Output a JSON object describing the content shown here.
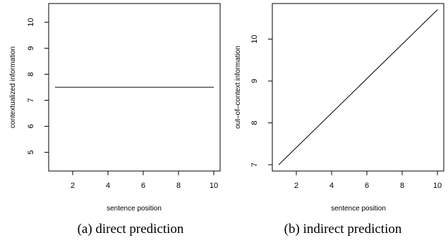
{
  "chart_data": [
    {
      "type": "line",
      "x": [
        1,
        10
      ],
      "y": [
        7.5,
        7.5
      ],
      "xlabel": "sentence position",
      "ylabel": "contextualized information",
      "xlim": [
        0.64,
        10.36
      ],
      "ylim": [
        4.28,
        10.72
      ],
      "xticks": [
        2,
        4,
        6,
        8,
        10
      ],
      "yticks": [
        5,
        6,
        7,
        8,
        9,
        10
      ],
      "caption": "(a) direct prediction"
    },
    {
      "type": "line",
      "x": [
        1,
        10
      ],
      "y": [
        7.0,
        10.7
      ],
      "xlabel": "sentence position",
      "ylabel": "out–of–context information",
      "xlim": [
        0.64,
        10.36
      ],
      "ylim": [
        6.85,
        10.85
      ],
      "xticks": [
        2,
        4,
        6,
        8,
        10
      ],
      "yticks": [
        7,
        8,
        9,
        10
      ],
      "caption": "(b) indirect prediction"
    }
  ]
}
